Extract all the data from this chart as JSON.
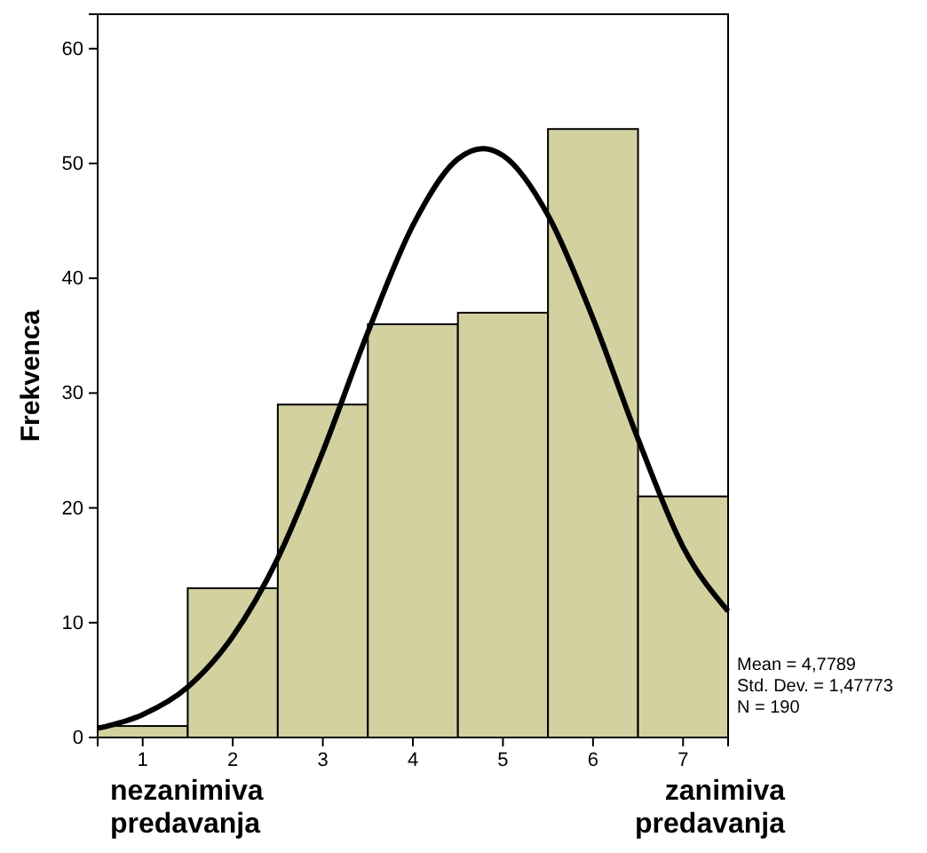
{
  "chart_data": {
    "type": "histogram",
    "ylabel": "Frekvenca",
    "bins": [
      0.5,
      1.5,
      2.5,
      3.5,
      4.5,
      5.5,
      6.5,
      7.5
    ],
    "values": [
      1,
      13,
      29,
      36,
      37,
      53,
      21
    ],
    "color": "#d4d1a1",
    "series": [
      {
        "type": "line",
        "color": "#000000",
        "x": [
          0.5,
          1,
          1.5,
          2,
          2.5,
          3,
          3.5,
          4,
          4.5,
          4.78,
          5,
          5.5,
          6,
          6.5,
          7,
          7.5
        ],
        "values": [
          0.8,
          2,
          4.4,
          8.8,
          15.6,
          24.9,
          35.3,
          44.6,
          50.4,
          51.3,
          50.7,
          45.5,
          36.5,
          26,
          16.6,
          11
        ]
      }
    ],
    "xlim": [
      0.5,
      7.5
    ],
    "xticks": [
      1,
      2,
      3,
      4,
      5,
      6,
      7
    ],
    "ylim": [
      0,
      63
    ],
    "yticks": [
      0,
      10,
      20,
      30,
      40,
      50,
      60
    ],
    "grid": false,
    "annotations": [
      "nezanimiva predavanja",
      "zanimiva predavanja",
      "Mean = 4,7789",
      "Std. Dev. = 1,47773",
      "N = 190"
    ]
  }
}
